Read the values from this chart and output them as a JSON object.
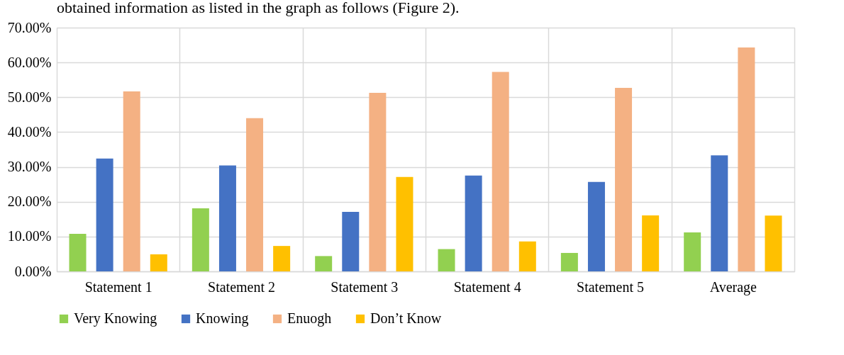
{
  "chart_data": {
    "type": "bar",
    "annotations": [
      "obtained information as listed in the graph as follows (Figure 2)."
    ],
    "categories": [
      "Statement 1",
      "Statement 2",
      "Statement 3",
      "Statement 4",
      "Statement 5",
      "Average"
    ],
    "series": [
      {
        "name": "Very Knowing",
        "color": "#92d050",
        "values": [
          10.8,
          18.1,
          4.4,
          6.4,
          5.3,
          11.2
        ]
      },
      {
        "name": "Knowing",
        "color": "#4472c4",
        "values": [
          32.4,
          30.4,
          17.1,
          27.5,
          25.7,
          33.3
        ]
      },
      {
        "name": "Enuogh",
        "color": "#f4b183",
        "values": [
          51.7,
          44.0,
          51.3,
          57.3,
          52.7,
          64.3
        ]
      },
      {
        "name": "Don’t Know",
        "color": "#ffc000",
        "values": [
          4.9,
          7.3,
          27.1,
          8.6,
          16.1,
          16.0
        ]
      }
    ],
    "ylim": [
      0,
      70
    ],
    "yticks": [
      {
        "value": 0,
        "label": "0.00%"
      },
      {
        "value": 10,
        "label": "10.00%"
      },
      {
        "value": 20,
        "label": "20.00%"
      },
      {
        "value": 30,
        "label": "30.00%"
      },
      {
        "value": 40,
        "label": "40.00%"
      },
      {
        "value": 50,
        "label": "50.00%"
      },
      {
        "value": 60,
        "label": "60.00%"
      },
      {
        "value": 70,
        "label": "70.00%"
      }
    ],
    "grid": true,
    "legend": "bottom"
  }
}
